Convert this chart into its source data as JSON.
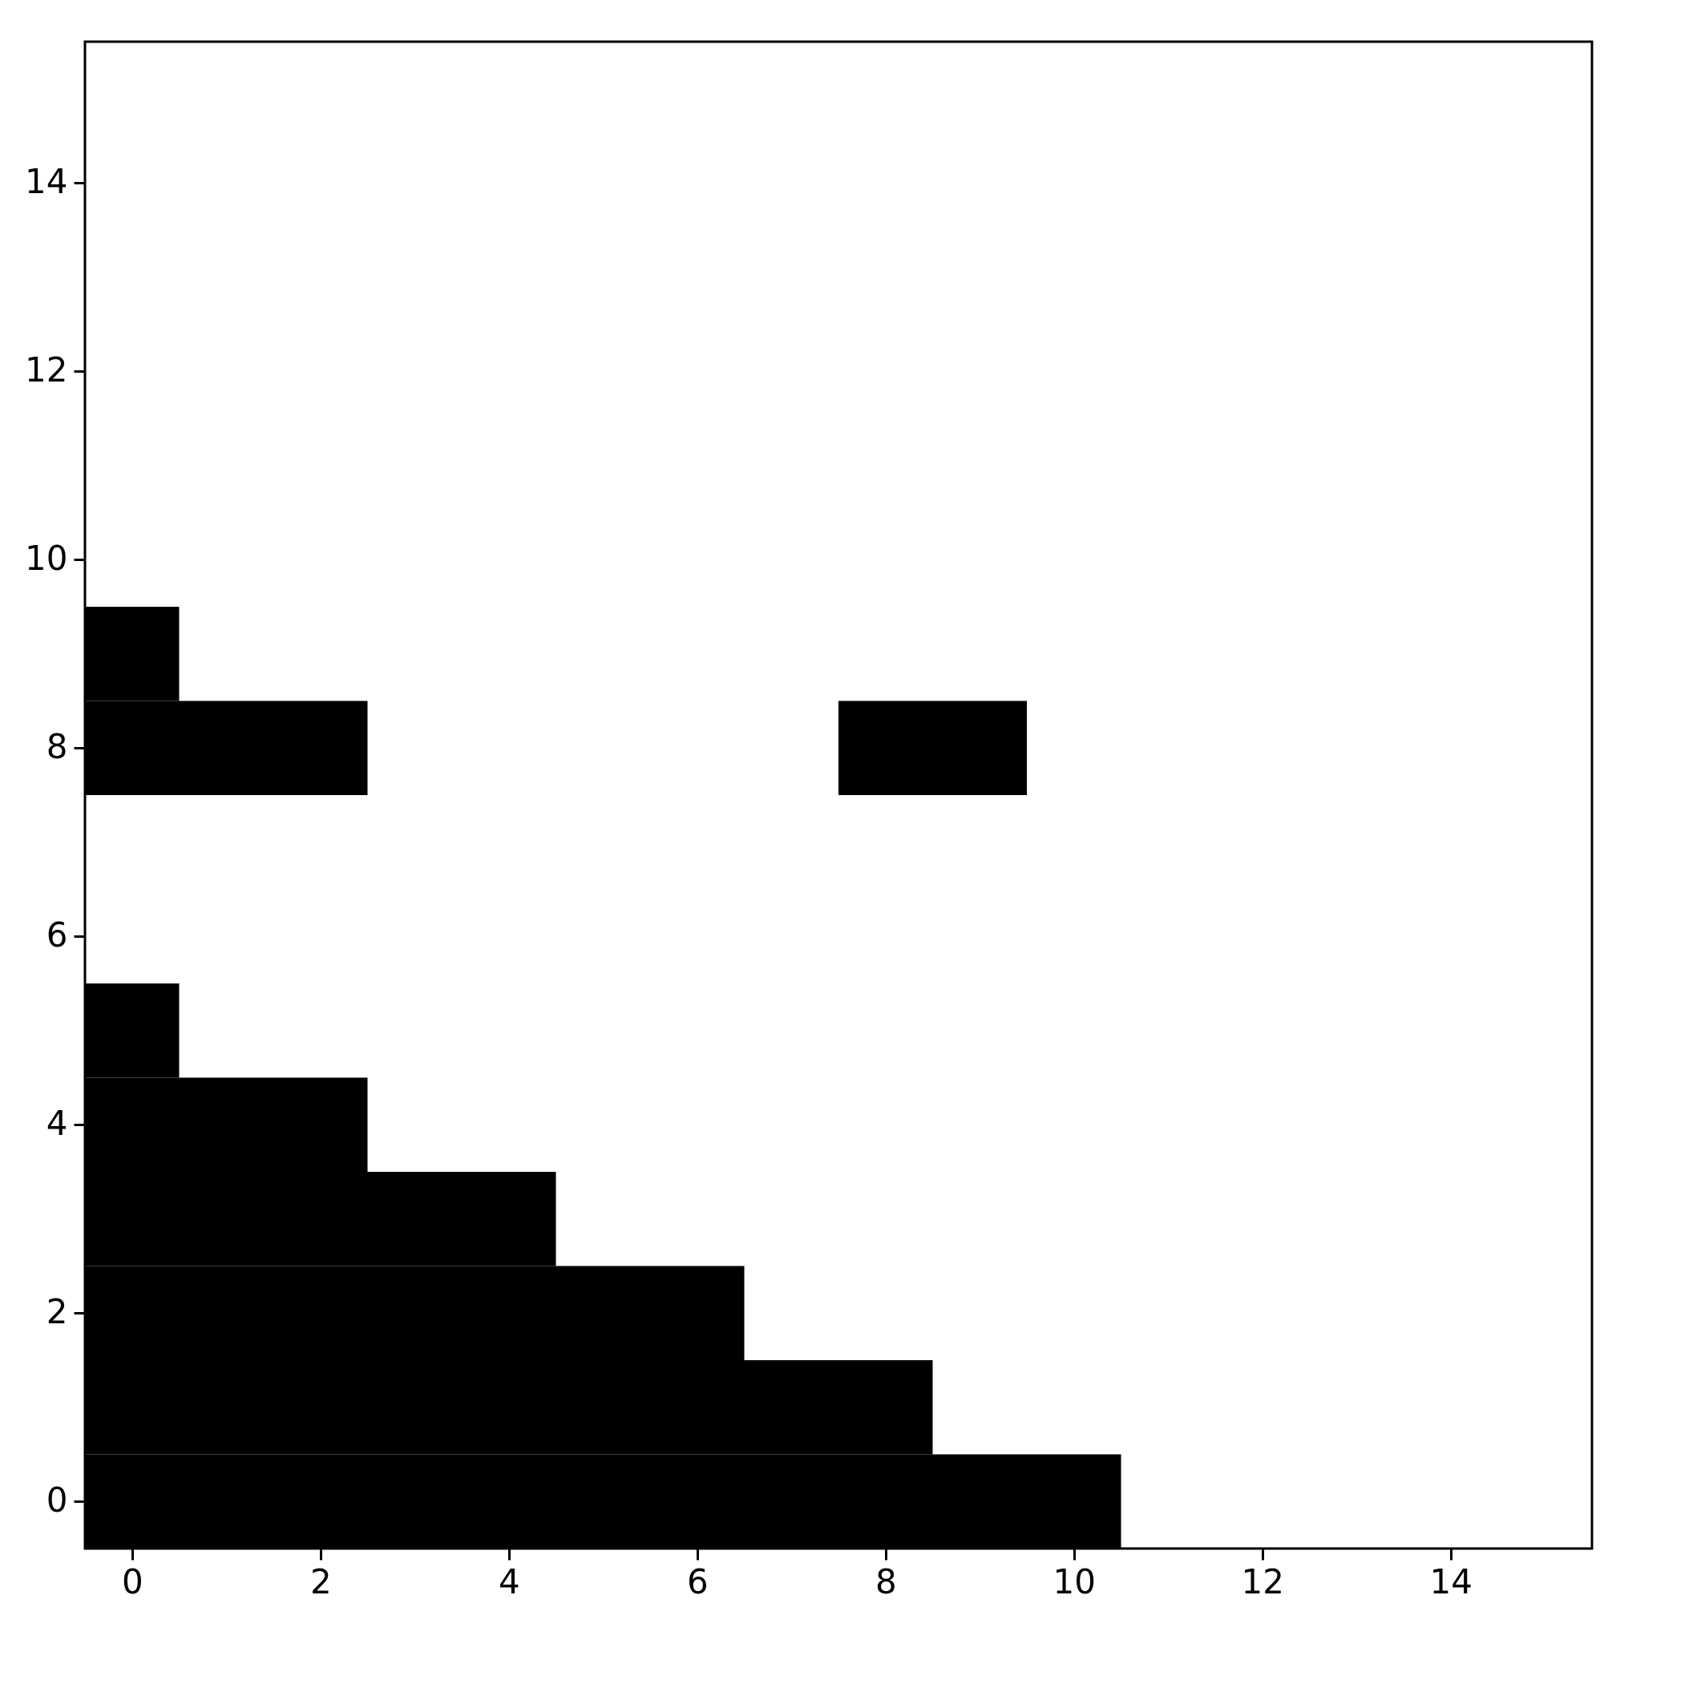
{
  "chart_data": {
    "type": "bar",
    "orientation": "horizontal",
    "categories": [
      null,
      "14",
      null,
      "12",
      null,
      "10",
      null,
      "8",
      null,
      "6",
      null,
      "4",
      null,
      "2",
      null,
      "0"
    ],
    "xlim": [
      -0.5,
      15.5
    ],
    "xticks": [
      0,
      2,
      4,
      6,
      8,
      10,
      12,
      14
    ],
    "series": [
      {
        "color": "#000000",
        "values": [
          null,
          null,
          null,
          null,
          null,
          null,
          1,
          3,
          null,
          null,
          1,
          3,
          5,
          7,
          9,
          11
        ],
        "base": [
          null,
          null,
          null,
          null,
          null,
          null,
          -0.5,
          -0.5,
          null,
          null,
          -0.5,
          -0.5,
          -0.5,
          -0.5,
          -0.5,
          -0.5
        ]
      },
      {
        "color": "#000000",
        "values": [
          null,
          null,
          null,
          null,
          null,
          null,
          null,
          2,
          null,
          null,
          null,
          null,
          null,
          null,
          null,
          null
        ],
        "base": [
          null,
          null,
          null,
          null,
          null,
          null,
          null,
          7.5,
          null,
          null,
          null,
          null,
          null,
          null,
          null,
          null
        ]
      }
    ]
  }
}
